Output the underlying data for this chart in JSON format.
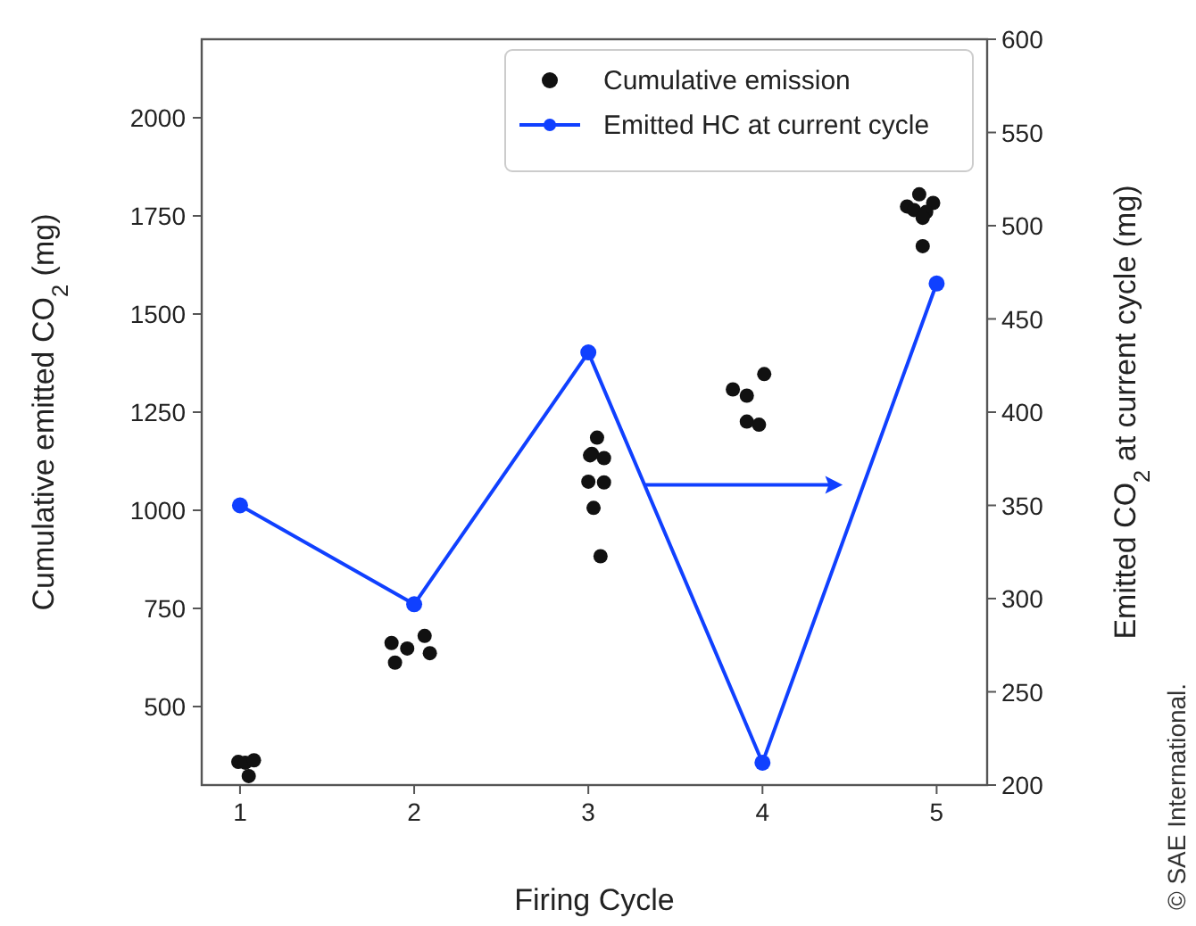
{
  "chart_data": {
    "type": "scatter",
    "xlabel": "Firing Cycle",
    "ylabel": "Cumulative emitted CO$_{2}$ (mg)",
    "y2label": "Emitted CO$_{2}$ at current cycle (mg)",
    "xlim": [
      0.78,
      5.29
    ],
    "xticks": [
      1,
      2,
      3,
      4,
      5
    ],
    "ylim": [
      300,
      2200
    ],
    "yticks": [
      500,
      750,
      1000,
      1250,
      1500,
      1750,
      2000
    ],
    "y2lim": [
      200,
      600
    ],
    "y2ticks": [
      200,
      250,
      300,
      350,
      400,
      450,
      500,
      550,
      600
    ],
    "legend": "top right",
    "grid": false,
    "series": [
      {
        "name": "Cumulative emission",
        "color": "#111111",
        "marker": "circle",
        "x": [
          0.99,
          1.03,
          1.08,
          1.05,
          1.87,
          1.96,
          2.06,
          1.89,
          2.09,
          3.05,
          3.02,
          3.01,
          3.09,
          3.0,
          3.09,
          3.03,
          3.07,
          3.83,
          3.91,
          4.01,
          3.91,
          3.98,
          4.9,
          4.83,
          4.87,
          4.98,
          4.94,
          4.92,
          4.92
        ],
        "values": [
          359,
          357,
          363,
          323,
          662,
          648,
          680,
          612,
          636,
          1185,
          1144,
          1140,
          1133,
          1073,
          1071,
          1006,
          883,
          1308,
          1292,
          1347,
          1226,
          1218,
          1805,
          1774,
          1765,
          1783,
          1760,
          1745,
          1673
        ]
      },
      {
        "name": "Emitted HC at current cycle",
        "type": "line",
        "axis": "y2",
        "color": "#1040ff",
        "marker": "circle",
        "line_style": "solid",
        "x": [
          1,
          2,
          3,
          4,
          5
        ],
        "values": [
          350,
          297,
          432,
          212,
          469
        ]
      }
    ],
    "annotations": [
      "© SAE International."
    ]
  }
}
